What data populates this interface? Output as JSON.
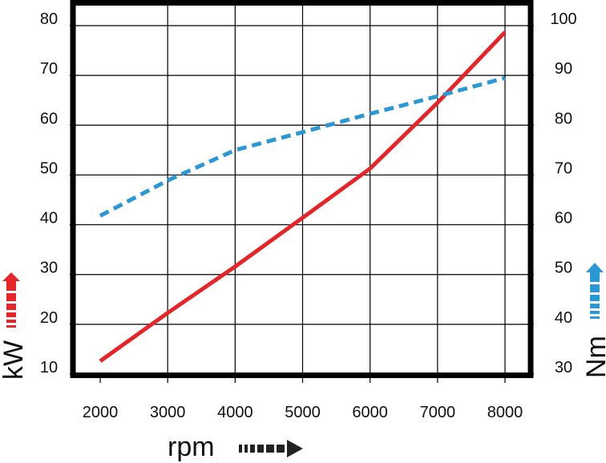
{
  "chart_data": {
    "type": "line",
    "xlabel": "rpm",
    "y_left_label": "kW",
    "y_right_label": "Nm",
    "x_ticks": [
      2000,
      3000,
      4000,
      5000,
      6000,
      7000,
      8000
    ],
    "y_left_ticks": [
      10,
      20,
      30,
      40,
      50,
      60,
      70,
      80
    ],
    "y_right_ticks": [
      30,
      40,
      50,
      60,
      70,
      80,
      90,
      100
    ],
    "xlim": [
      2000,
      8000
    ],
    "y_left_lim": [
      10,
      80
    ],
    "y_right_lim": [
      30,
      100
    ],
    "grid": true,
    "series": [
      {
        "axis": "left",
        "style": "solid",
        "color": "#e3262a",
        "x": [
          2000,
          3000,
          4000,
          5000,
          6000,
          7000,
          8000
        ],
        "values": [
          12.6,
          22.3,
          31.6,
          41.4,
          51.3,
          64.5,
          78.7
        ]
      },
      {
        "axis": "right",
        "style": "dashed",
        "color": "#2b97d3",
        "x": [
          2000,
          3000,
          4000,
          5000,
          6000,
          7000,
          8000
        ],
        "values": [
          61.8,
          68.9,
          75.0,
          78.6,
          82.3,
          85.8,
          89.5
        ]
      }
    ]
  },
  "colors": {
    "frame": "#000000",
    "grid": "#000000",
    "arrow_dark": "#222222"
  }
}
